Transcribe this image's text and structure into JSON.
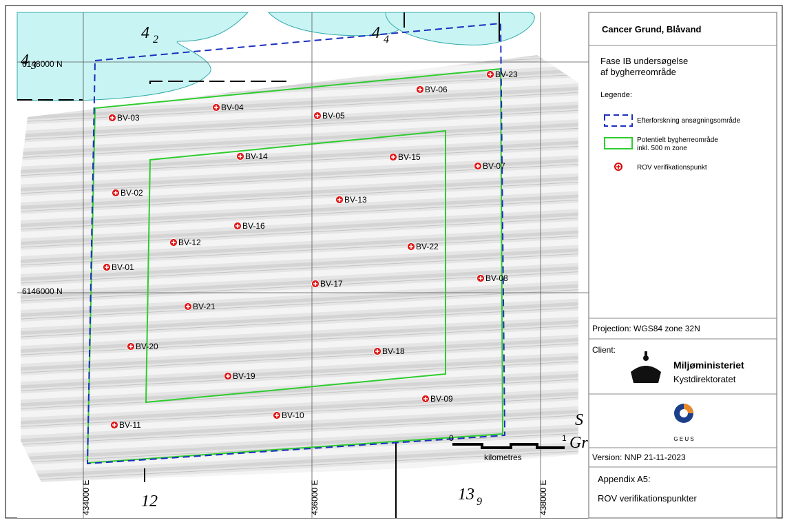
{
  "map": {
    "grid_labels": {
      "n_6148000": "6148000 N",
      "n_6146000": "6146000 N",
      "e_434000": "434000 E",
      "e_436000": "436000 E",
      "e_438000": "438000 E"
    },
    "chart_labels": {
      "a": "4",
      "a_sub": "2",
      "b": "4",
      "b_sub": "4",
      "c": "4",
      "c_sub": "3",
      "d": "12",
      "e": "13",
      "e_sub": "9",
      "f": "S",
      "g": "Gr"
    },
    "scale_bar": {
      "start": "0",
      "end": "1",
      "unit": "kilometres"
    },
    "points": [
      "BV-01",
      "BV-02",
      "BV-03",
      "BV-04",
      "BV-05",
      "BV-06",
      "BV-07",
      "BV-08",
      "BV-09",
      "BV-10",
      "BV-11",
      "BV-12",
      "BV-13",
      "BV-14",
      "BV-15",
      "BV-16",
      "BV-17",
      "BV-18",
      "BV-19",
      "BV-20",
      "BV-21",
      "BV-22",
      "BV-23"
    ]
  },
  "sidebar": {
    "title": "Cancer Grund, Blåvand",
    "subtitle_1": "Fase IB undersøgelse",
    "subtitle_2": "af bygherreområde",
    "legend_heading": "Legende:",
    "legend_1": "Efterforskning ansøgningsområde",
    "legend_2a": "Potentielt bygherreområde",
    "legend_2b": "inkl. 500 m zone",
    "legend_3": "ROV verifikationspunkt",
    "projection": "Projection: WGS84 zone 32N",
    "client_label": "Client:",
    "client_name": "Miljøministeriet",
    "client_agency": "Kystdirektoratet",
    "logo_text": "G E U S",
    "version": "Version: NNP 21-11-2023",
    "appendix": "Appendix A5:",
    "appendix_title": "ROV verifikationspunkter"
  }
}
